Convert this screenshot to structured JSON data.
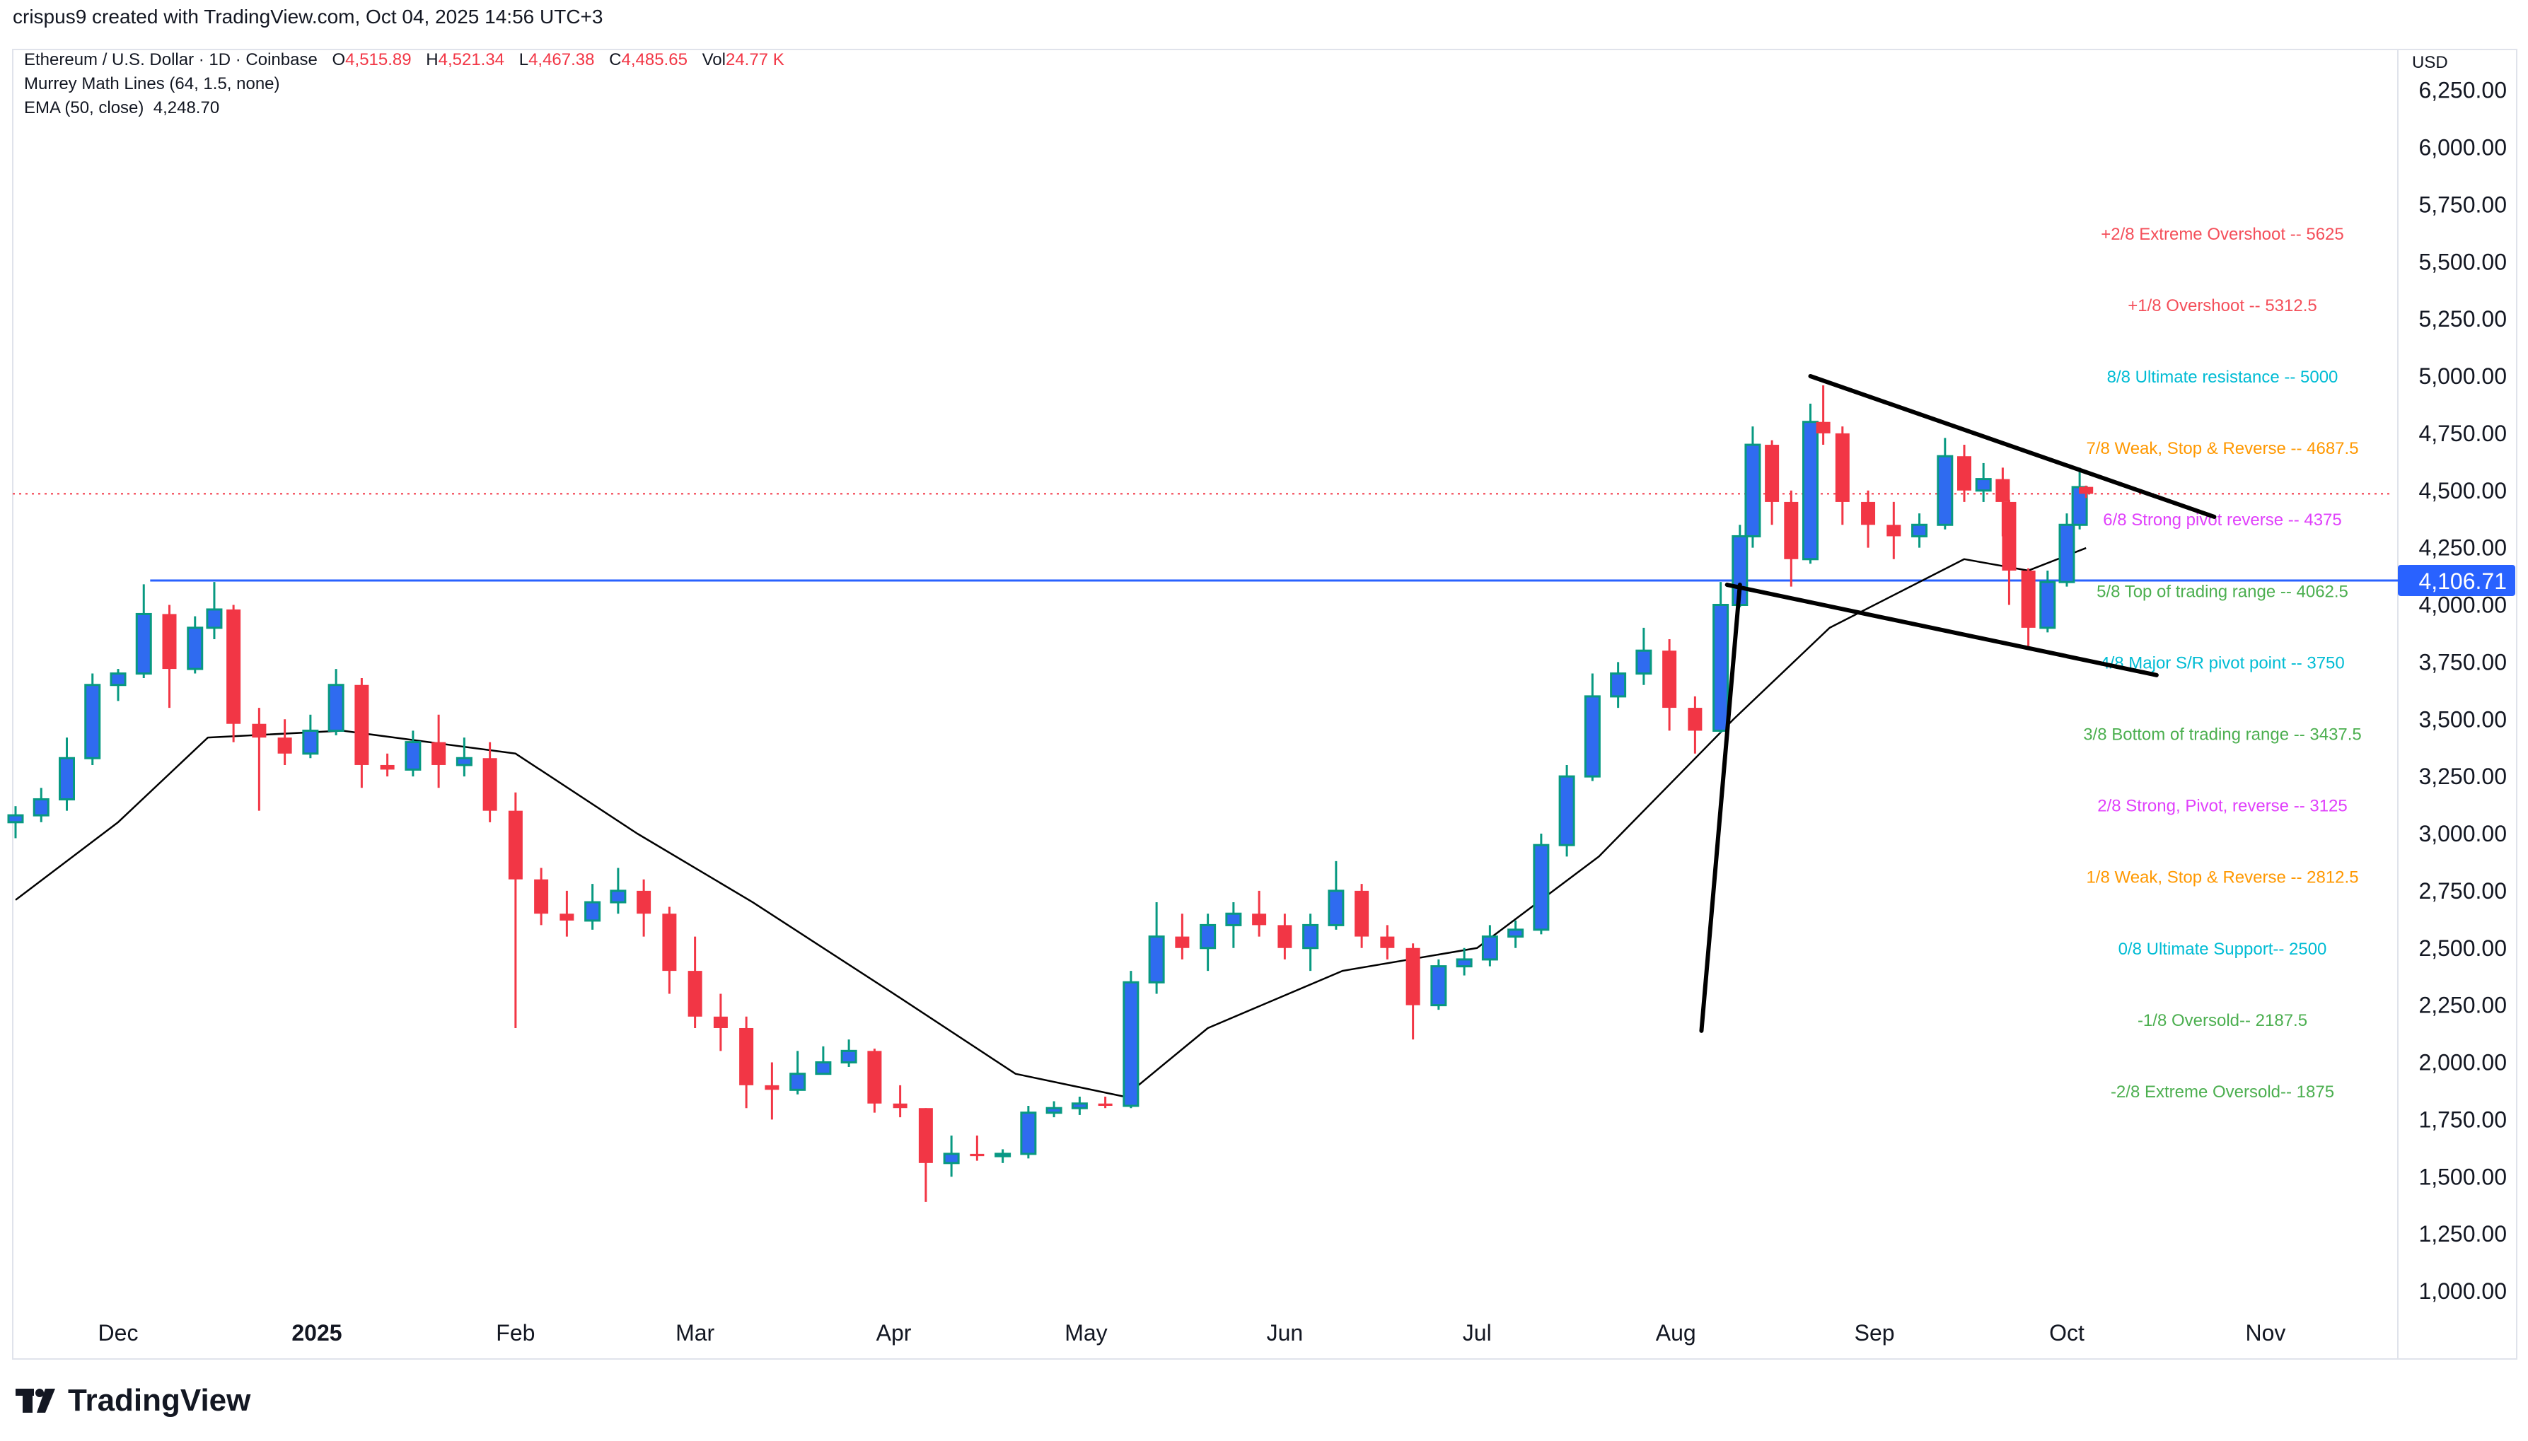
{
  "credit": "crispus9 created with TradingView.com, Oct 04, 2025 14:56 UTC+3",
  "legend": {
    "symbol": "Ethereum / U.S. Dollar · 1D · Coinbase",
    "open_label": "O",
    "open": "4,515.89",
    "high_label": "H",
    "high": "4,521.34",
    "low_label": "L",
    "low": "4,467.38",
    "close_label": "C",
    "close": "4,485.65",
    "vol_label": "Vol",
    "vol": "24.77 K",
    "murrey": "Murrey Math Lines (64, 1.5, none)",
    "ema_label": "EMA (50, close)",
    "ema_value": "4,248.70"
  },
  "logo": "TradingView",
  "chart_data": {
    "type": "candlestick",
    "currency": "USD",
    "ylim": [
      850,
      6350
    ],
    "y_ticks": [
      "1,000.00",
      "1,250.00",
      "1,500.00",
      "1,750.00",
      "2,000.00",
      "2,250.00",
      "2,500.00",
      "2,750.00",
      "3,000.00",
      "3,250.00",
      "3,500.00",
      "3,750.00",
      "4,000.00",
      "4,250.00",
      "4,500.00",
      "4,750.00",
      "5,000.00",
      "5,250.00",
      "5,500.00",
      "5,750.00",
      "6,000.00",
      "6,250.00"
    ],
    "x_ticks": [
      {
        "date": "2024-12-01",
        "label": "Dec"
      },
      {
        "date": "2025-01-01",
        "label": "2025",
        "bold": true
      },
      {
        "date": "2025-02-01",
        "label": "Feb"
      },
      {
        "date": "2025-03-01",
        "label": "Mar"
      },
      {
        "date": "2025-04-01",
        "label": "Apr"
      },
      {
        "date": "2025-05-01",
        "label": "May"
      },
      {
        "date": "2025-06-01",
        "label": "Jun"
      },
      {
        "date": "2025-07-01",
        "label": "Jul"
      },
      {
        "date": "2025-08-01",
        "label": "Aug"
      },
      {
        "date": "2025-09-01",
        "label": "Sep"
      },
      {
        "date": "2025-10-01",
        "label": "Oct"
      },
      {
        "date": "2025-11-01",
        "label": "Nov"
      }
    ],
    "colors": {
      "up_body": "#2f6bf0",
      "up_wick": "#089981",
      "down": "#f23645",
      "ema": "#000000",
      "hline": "#2962ff",
      "last_price": "#f23645"
    },
    "candles": [
      [
        "2024-11-15",
        3050,
        3120,
        2980,
        3080
      ],
      [
        "2024-11-19",
        3080,
        3200,
        3050,
        3150
      ],
      [
        "2024-11-23",
        3150,
        3420,
        3100,
        3330
      ],
      [
        "2024-11-27",
        3330,
        3700,
        3300,
        3650
      ],
      [
        "2024-12-01",
        3650,
        3720,
        3580,
        3700
      ],
      [
        "2024-12-05",
        3700,
        4090,
        3680,
        3960
      ],
      [
        "2024-12-09",
        3960,
        4000,
        3550,
        3720
      ],
      [
        "2024-12-13",
        3720,
        3950,
        3700,
        3900
      ],
      [
        "2024-12-16",
        3900,
        4100,
        3850,
        3980
      ],
      [
        "2024-12-19",
        3980,
        4000,
        3400,
        3480
      ],
      [
        "2024-12-23",
        3480,
        3550,
        3100,
        3420
      ],
      [
        "2024-12-27",
        3420,
        3500,
        3300,
        3350
      ],
      [
        "2024-12-31",
        3350,
        3520,
        3330,
        3450
      ],
      [
        "2025-01-04",
        3450,
        3720,
        3430,
        3650
      ],
      [
        "2025-01-08",
        3650,
        3680,
        3200,
        3300
      ],
      [
        "2025-01-12",
        3300,
        3350,
        3250,
        3280
      ],
      [
        "2025-01-16",
        3280,
        3450,
        3250,
        3400
      ],
      [
        "2025-01-20",
        3400,
        3520,
        3200,
        3300
      ],
      [
        "2025-01-24",
        3300,
        3420,
        3250,
        3330
      ],
      [
        "2025-01-28",
        3330,
        3400,
        3050,
        3100
      ],
      [
        "2025-02-01",
        3100,
        3180,
        2150,
        2800
      ],
      [
        "2025-02-05",
        2800,
        2850,
        2600,
        2650
      ],
      [
        "2025-02-09",
        2650,
        2750,
        2550,
        2620
      ],
      [
        "2025-02-13",
        2620,
        2780,
        2580,
        2700
      ],
      [
        "2025-02-17",
        2700,
        2850,
        2650,
        2750
      ],
      [
        "2025-02-21",
        2750,
        2800,
        2550,
        2650
      ],
      [
        "2025-02-25",
        2650,
        2680,
        2300,
        2400
      ],
      [
        "2025-03-01",
        2400,
        2550,
        2150,
        2200
      ],
      [
        "2025-03-05",
        2200,
        2300,
        2050,
        2150
      ],
      [
        "2025-03-09",
        2150,
        2200,
        1800,
        1900
      ],
      [
        "2025-03-13",
        1900,
        2000,
        1750,
        1880
      ],
      [
        "2025-03-17",
        1880,
        2050,
        1860,
        1950
      ],
      [
        "2025-03-21",
        1950,
        2070,
        1950,
        2000
      ],
      [
        "2025-03-25",
        2000,
        2100,
        1980,
        2050
      ],
      [
        "2025-03-29",
        2050,
        2060,
        1780,
        1820
      ],
      [
        "2025-04-02",
        1820,
        1900,
        1760,
        1800
      ],
      [
        "2025-04-06",
        1800,
        1800,
        1390,
        1560
      ],
      [
        "2025-04-10",
        1560,
        1680,
        1500,
        1600
      ],
      [
        "2025-04-14",
        1600,
        1680,
        1570,
        1590
      ],
      [
        "2025-04-18",
        1590,
        1620,
        1560,
        1600
      ],
      [
        "2025-04-22",
        1600,
        1810,
        1580,
        1780
      ],
      [
        "2025-04-26",
        1780,
        1830,
        1760,
        1800
      ],
      [
        "2025-04-30",
        1800,
        1850,
        1770,
        1820
      ],
      [
        "2025-05-04",
        1820,
        1850,
        1800,
        1810
      ],
      [
        "2025-05-08",
        1810,
        2400,
        1800,
        2350
      ],
      [
        "2025-05-12",
        2350,
        2700,
        2300,
        2550
      ],
      [
        "2025-05-16",
        2550,
        2650,
        2450,
        2500
      ],
      [
        "2025-05-20",
        2500,
        2650,
        2400,
        2600
      ],
      [
        "2025-05-24",
        2600,
        2700,
        2500,
        2650
      ],
      [
        "2025-05-28",
        2650,
        2750,
        2550,
        2600
      ],
      [
        "2025-06-01",
        2600,
        2650,
        2450,
        2500
      ],
      [
        "2025-06-05",
        2500,
        2650,
        2400,
        2600
      ],
      [
        "2025-06-09",
        2600,
        2880,
        2580,
        2750
      ],
      [
        "2025-06-13",
        2750,
        2780,
        2500,
        2550
      ],
      [
        "2025-06-17",
        2550,
        2600,
        2450,
        2500
      ],
      [
        "2025-06-21",
        2500,
        2520,
        2100,
        2250
      ],
      [
        "2025-06-25",
        2250,
        2450,
        2230,
        2420
      ],
      [
        "2025-06-29",
        2420,
        2500,
        2380,
        2450
      ],
      [
        "2025-07-03",
        2450,
        2600,
        2420,
        2550
      ],
      [
        "2025-07-07",
        2550,
        2620,
        2500,
        2580
      ],
      [
        "2025-07-11",
        2580,
        3000,
        2560,
        2950
      ],
      [
        "2025-07-15",
        2950,
        3300,
        2900,
        3250
      ],
      [
        "2025-07-19",
        3250,
        3700,
        3230,
        3600
      ],
      [
        "2025-07-23",
        3600,
        3750,
        3550,
        3700
      ],
      [
        "2025-07-27",
        3700,
        3900,
        3650,
        3800
      ],
      [
        "2025-07-31",
        3800,
        3850,
        3450,
        3550
      ],
      [
        "2025-08-04",
        3550,
        3600,
        3350,
        3450
      ],
      [
        "2025-08-08",
        3450,
        4100,
        3440,
        4000
      ],
      [
        "2025-08-11",
        4000,
        4350,
        3990,
        4300
      ],
      [
        "2025-08-13",
        4300,
        4780,
        4250,
        4700
      ],
      [
        "2025-08-16",
        4700,
        4720,
        4350,
        4450
      ],
      [
        "2025-08-19",
        4450,
        4500,
        4080,
        4200
      ],
      [
        "2025-08-22",
        4200,
        4880,
        4180,
        4800
      ],
      [
        "2025-08-24",
        4800,
        4960,
        4700,
        4750
      ],
      [
        "2025-08-27",
        4750,
        4780,
        4350,
        4450
      ],
      [
        "2025-08-31",
        4450,
        4500,
        4250,
        4350
      ],
      [
        "2025-09-04",
        4350,
        4450,
        4200,
        4300
      ],
      [
        "2025-09-08",
        4300,
        4400,
        4250,
        4350
      ],
      [
        "2025-09-12",
        4350,
        4730,
        4330,
        4650
      ],
      [
        "2025-09-15",
        4650,
        4700,
        4450,
        4500
      ],
      [
        "2025-09-18",
        4500,
        4620,
        4450,
        4550
      ],
      [
        "2025-09-21",
        4550,
        4600,
        4300,
        4450
      ],
      [
        "2025-09-22",
        4450,
        4460,
        4000,
        4150
      ],
      [
        "2025-09-25",
        4150,
        4160,
        3820,
        3900
      ],
      [
        "2025-09-28",
        3900,
        4150,
        3880,
        4100
      ],
      [
        "2025-10-01",
        4100,
        4400,
        4080,
        4350
      ],
      [
        "2025-10-03",
        4350,
        4600,
        4330,
        4515
      ],
      [
        "2025-10-04",
        4515.89,
        4521.34,
        4467.38,
        4485.65
      ]
    ],
    "ema_50": [
      [
        "2024-11-15",
        2710
      ],
      [
        "2024-12-01",
        3050
      ],
      [
        "2024-12-15",
        3420
      ],
      [
        "2025-01-05",
        3450
      ],
      [
        "2025-02-01",
        3350
      ],
      [
        "2025-02-20",
        3000
      ],
      [
        "2025-03-10",
        2700
      ],
      [
        "2025-04-01",
        2300
      ],
      [
        "2025-04-20",
        1950
      ],
      [
        "2025-05-07",
        1850
      ],
      [
        "2025-05-20",
        2150
      ],
      [
        "2025-06-10",
        2400
      ],
      [
        "2025-07-01",
        2500
      ],
      [
        "2025-07-20",
        2900
      ],
      [
        "2025-08-10",
        3500
      ],
      [
        "2025-08-25",
        3900
      ],
      [
        "2025-09-15",
        4200
      ],
      [
        "2025-09-25",
        4150
      ],
      [
        "2025-10-04",
        4248.7
      ]
    ],
    "horizontal_line": {
      "start": "2024-12-06",
      "value": 4106.71,
      "label": "4,106.71"
    },
    "last_price": 4485.65,
    "trendlines": [
      {
        "from": [
          "2025-08-22",
          5000
        ],
        "to": [
          "2025-10-24",
          4385
        ]
      },
      {
        "from": [
          "2025-08-09",
          4088
        ],
        "to": [
          "2025-10-15",
          3693
        ]
      },
      {
        "from": [
          "2025-08-05",
          2138
        ],
        "to": [
          "2025-08-11",
          4088
        ]
      }
    ],
    "murrey_levels": [
      {
        "text": "+2/8 Extreme Overshoot --  5625",
        "value": 5625,
        "color": "#f44f5a"
      },
      {
        "text": "+1/8 Overshoot --  5312.5",
        "value": 5312.5,
        "color": "#f44f5a"
      },
      {
        "text": "8/8 Ultimate resistance --  5000",
        "value": 5000,
        "color": "#00bcd4"
      },
      {
        "text": "7/8 Weak, Stop & Reverse --  4687.5",
        "value": 4687.5,
        "color": "#ff9800"
      },
      {
        "text": "6/8 Strong pivot reverse --  4375",
        "value": 4375,
        "color": "#e040fb"
      },
      {
        "text": "5/8 Top of trading range --  4062.5",
        "value": 4062.5,
        "color": "#4caf50"
      },
      {
        "text": "4/8 Major S/R pivot point --  3750",
        "value": 3750,
        "color": "#00bcd4"
      },
      {
        "text": "3/8 Bottom of trading range --  3437.5",
        "value": 3437.5,
        "color": "#4caf50"
      },
      {
        "text": "2/8 Strong, Pivot, reverse --  3125",
        "value": 3125,
        "color": "#e040fb"
      },
      {
        "text": "1/8 Weak, Stop & Reverse --  2812.5",
        "value": 2812.5,
        "color": "#ff9800"
      },
      {
        "text": "0/8 Ultimate Support--  2500",
        "value": 2500,
        "color": "#00bcd4"
      },
      {
        "text": "-1/8 Oversold--  2187.5",
        "value": 2187.5,
        "color": "#4caf50"
      },
      {
        "text": "-2/8 Extreme Oversold--  1875",
        "value": 1875,
        "color": "#4caf50"
      }
    ]
  }
}
